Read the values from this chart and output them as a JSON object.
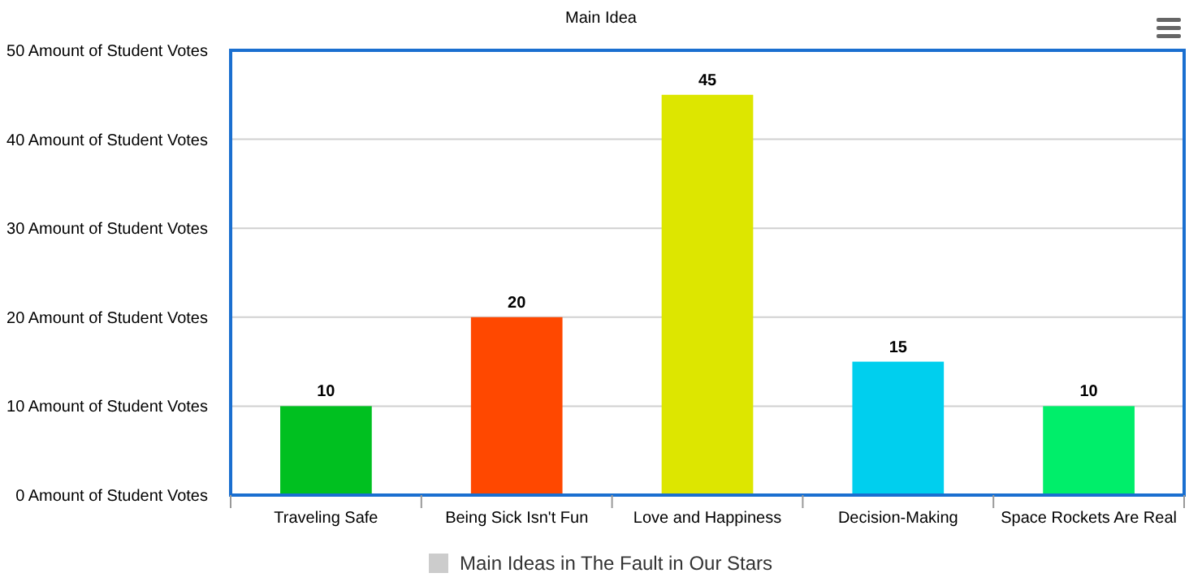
{
  "chart_data": {
    "type": "bar",
    "title": "Main Idea",
    "categories": [
      "Traveling Safe",
      "Being Sick Isn't Fun",
      "Love and Happiness",
      "Decision-Making",
      "Space Rockets Are Real"
    ],
    "series": [
      {
        "name": "Main Ideas in The Fault in Our Stars",
        "color": "#cccccc",
        "colors": [
          "#00c020",
          "#ff4800",
          "#dde600",
          "#00cfee",
          "#00ee6a"
        ],
        "values": [
          10,
          20,
          45,
          15,
          10
        ]
      }
    ],
    "ylim": [
      0,
      50
    ],
    "yticks": [
      {
        "value": 0,
        "label": "0 Amount of Student Votes"
      },
      {
        "value": 10,
        "label": "10 Amount of Student Votes"
      },
      {
        "value": 20,
        "label": "20 Amount of Student Votes"
      },
      {
        "value": 30,
        "label": "30 Amount of Student Votes"
      },
      {
        "value": 40,
        "label": "40 Amount of Student Votes"
      },
      {
        "value": 50,
        "label": "50 Amount of Student Votes"
      }
    ],
    "grid": "y",
    "legend": "bottom",
    "data_labels": true
  }
}
